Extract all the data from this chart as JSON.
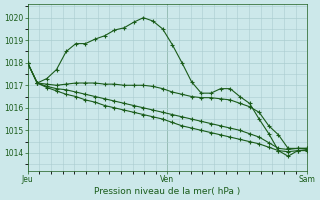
{
  "title": "Pression niveau de la mer( hPa )",
  "xlabel_ticks": [
    "Jeu",
    "Ven",
    "Sam"
  ],
  "xlabel_tick_positions": [
    0,
    36,
    72
  ],
  "ylim": [
    1013.2,
    1020.6
  ],
  "yticks": [
    1014,
    1015,
    1016,
    1017,
    1018,
    1019,
    1020
  ],
  "bg_color": "#cce8ea",
  "grid_color": "#aacdd0",
  "line_color": "#1a5c1a",
  "line_width": 0.8,
  "marker": "+",
  "marker_size": 3,
  "marker_edge_width": 0.8,
  "series": [
    [
      1018.0,
      1017.1,
      1017.3,
      1017.7,
      1018.5,
      1018.85,
      1018.85,
      1019.05,
      1019.2,
      1019.45,
      1019.55,
      1019.8,
      1020.0,
      1019.85,
      1019.5,
      1018.8,
      1018.0,
      1017.15,
      1016.65,
      1016.65,
      1016.85,
      1016.85,
      1016.5,
      1016.2,
      1015.5,
      1014.85,
      1014.1,
      1013.85,
      1014.1,
      1014.1
    ],
    [
      1018.0,
      1017.1,
      1017.05,
      1017.0,
      1017.05,
      1017.1,
      1017.1,
      1017.1,
      1017.05,
      1017.05,
      1017.0,
      1017.0,
      1017.0,
      1016.95,
      1016.85,
      1016.7,
      1016.6,
      1016.5,
      1016.45,
      1016.45,
      1016.4,
      1016.35,
      1016.2,
      1016.05,
      1015.8,
      1015.2,
      1014.8,
      1014.2,
      1014.2,
      1014.2
    ],
    [
      1018.0,
      1017.1,
      1016.95,
      1016.85,
      1016.8,
      1016.7,
      1016.6,
      1016.5,
      1016.4,
      1016.3,
      1016.2,
      1016.1,
      1016.0,
      1015.9,
      1015.8,
      1015.7,
      1015.6,
      1015.5,
      1015.4,
      1015.3,
      1015.2,
      1015.1,
      1015.0,
      1014.85,
      1014.7,
      1014.45,
      1014.2,
      1014.15,
      1014.2,
      1014.2
    ],
    [
      1018.0,
      1017.1,
      1016.9,
      1016.75,
      1016.6,
      1016.5,
      1016.35,
      1016.25,
      1016.1,
      1016.0,
      1015.9,
      1015.8,
      1015.7,
      1015.6,
      1015.5,
      1015.35,
      1015.2,
      1015.1,
      1015.0,
      1014.9,
      1014.8,
      1014.7,
      1014.6,
      1014.5,
      1014.4,
      1014.25,
      1014.1,
      1014.05,
      1014.1,
      1014.15
    ]
  ]
}
